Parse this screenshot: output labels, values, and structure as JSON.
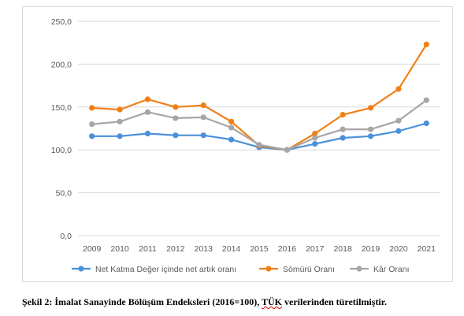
{
  "chart_data": {
    "type": "line",
    "title": "",
    "xlabel": "",
    "ylabel": "",
    "ylim": [
      0,
      250
    ],
    "yticks": [
      "0,0",
      "50,0",
      "100,0",
      "150,0",
      "200,0",
      "250,0"
    ],
    "ytick_values": [
      0,
      50,
      100,
      150,
      200,
      250
    ],
    "categories": [
      "2009",
      "2010",
      "2011",
      "2012",
      "2013",
      "2014",
      "2015",
      "2016",
      "2017",
      "2018",
      "2019",
      "2020",
      "2021"
    ],
    "grid": true,
    "legend_position": "bottom",
    "series": [
      {
        "name": "Net Katma Değer içinde net artık oranı",
        "color": "#4a90d9",
        "values": [
          116,
          116,
          119,
          117,
          117,
          112,
          103,
          100,
          107,
          114,
          116,
          122,
          131
        ]
      },
      {
        "name": "Sömürü Oranı",
        "color": "#f07f16",
        "values": [
          149,
          147,
          159,
          150,
          152,
          133,
          105,
          100,
          119,
          141,
          149,
          171,
          223
        ]
      },
      {
        "name": "Kâr Oranı",
        "color": "#a6a6a6",
        "values": [
          130,
          133,
          144,
          137,
          138,
          126,
          106,
          100,
          114,
          124,
          124,
          134,
          158
        ]
      }
    ]
  },
  "caption": {
    "prefix": "Şekil 2: İmalat Sanayinde Bölüşüm Endeksleri (2016=100), ",
    "squiggle": "TÜK",
    "suffix": " verilerinden türetilmiştir."
  }
}
